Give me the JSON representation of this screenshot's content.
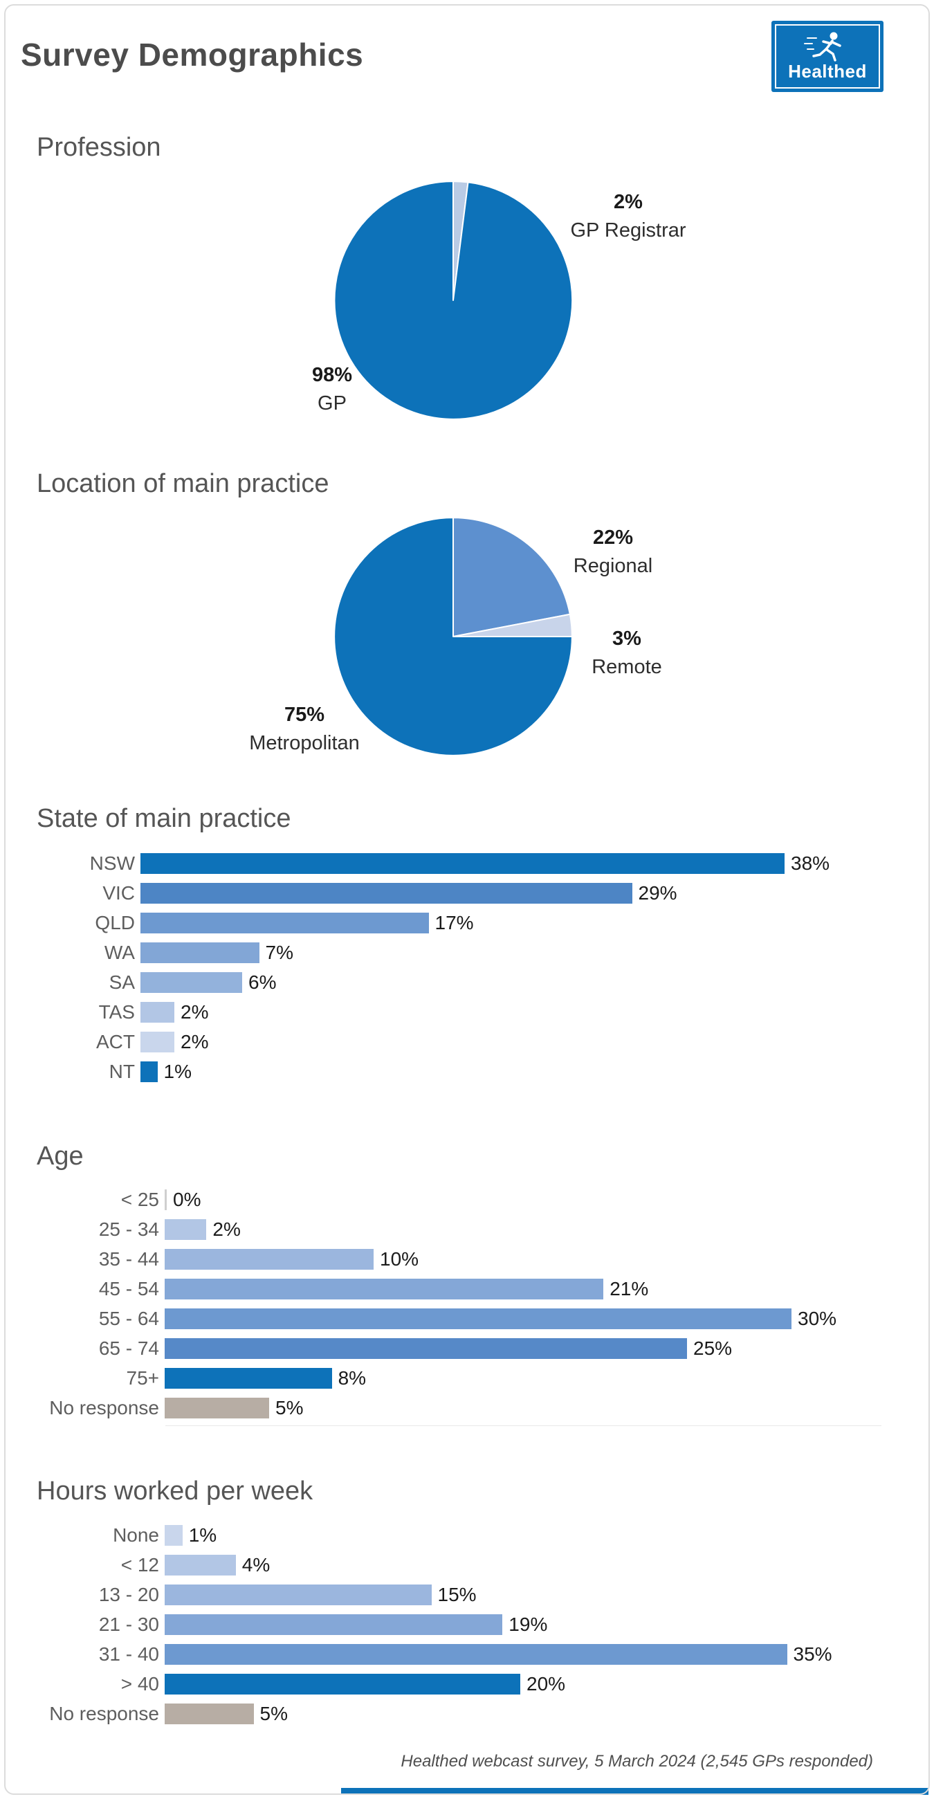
{
  "page": {
    "title": "Survey Demographics",
    "logo_text": "Healthed",
    "footer": "Healthed webcast survey, 5 March 2024 (2,545 GPs responded)",
    "accent_color": "#0d72b9"
  },
  "chart_data": [
    {
      "type": "pie",
      "title": "Profession",
      "labels": [
        "GP",
        "GP Registrar"
      ],
      "values": [
        98,
        2
      ],
      "colors": [
        "#0d72b9",
        "#b9cbe5"
      ],
      "callouts": [
        {
          "value": "98%",
          "label": "GP"
        },
        {
          "value": "2%",
          "label": "GP Registrar"
        }
      ]
    },
    {
      "type": "pie",
      "title": "Location of main practice",
      "labels": [
        "Metropolitan",
        "Regional",
        "Remote"
      ],
      "values": [
        75,
        22,
        3
      ],
      "colors": [
        "#0d72b9",
        "#5d90cf",
        "#c8d4ea"
      ],
      "callouts": [
        {
          "value": "75%",
          "label": "Metropolitan"
        },
        {
          "value": "22%",
          "label": "Regional"
        },
        {
          "value": "3%",
          "label": "Remote"
        }
      ]
    },
    {
      "type": "bar",
      "title": "State of main practice",
      "categories": [
        "NSW",
        "VIC",
        "QLD",
        "WA",
        "SA",
        "TAS",
        "ACT",
        "NT"
      ],
      "values": [
        38,
        29,
        17,
        7,
        6,
        2,
        2,
        1
      ],
      "unit": "%",
      "xlim": [
        0,
        40
      ],
      "colors": [
        "#0d72b9",
        "#4d85c5",
        "#6d99d0",
        "#82a6d6",
        "#93b2dc",
        "#b2c6e5",
        "#c9d6ec",
        "#0d72b9"
      ]
    },
    {
      "type": "bar",
      "title": "Age",
      "categories": [
        "< 25",
        "25 - 34",
        "35 - 44",
        "45 - 54",
        "55 - 64",
        "65 - 74",
        "75+",
        "No response"
      ],
      "values": [
        0,
        2,
        10,
        21,
        30,
        25,
        8,
        5
      ],
      "unit": "%",
      "xlim": [
        0,
        32
      ],
      "colors": [
        "#d5dff0",
        "#b2c6e5",
        "#9bb6de",
        "#84a7d7",
        "#6d99d0",
        "#5689c8",
        "#0d72b9",
        "#b7ada4"
      ]
    },
    {
      "type": "bar",
      "title": "Hours worked per week",
      "categories": [
        "None",
        "< 12",
        "13 - 20",
        "21 - 30",
        "31 - 40",
        "> 40",
        "No response"
      ],
      "values": [
        1,
        4,
        15,
        19,
        35,
        20,
        5
      ],
      "unit": "%",
      "xlim": [
        0,
        37
      ],
      "colors": [
        "#c9d6ec",
        "#b2c6e5",
        "#9bb6de",
        "#84a7d7",
        "#6d99d0",
        "#0d72b9",
        "#b7ada4"
      ]
    }
  ]
}
